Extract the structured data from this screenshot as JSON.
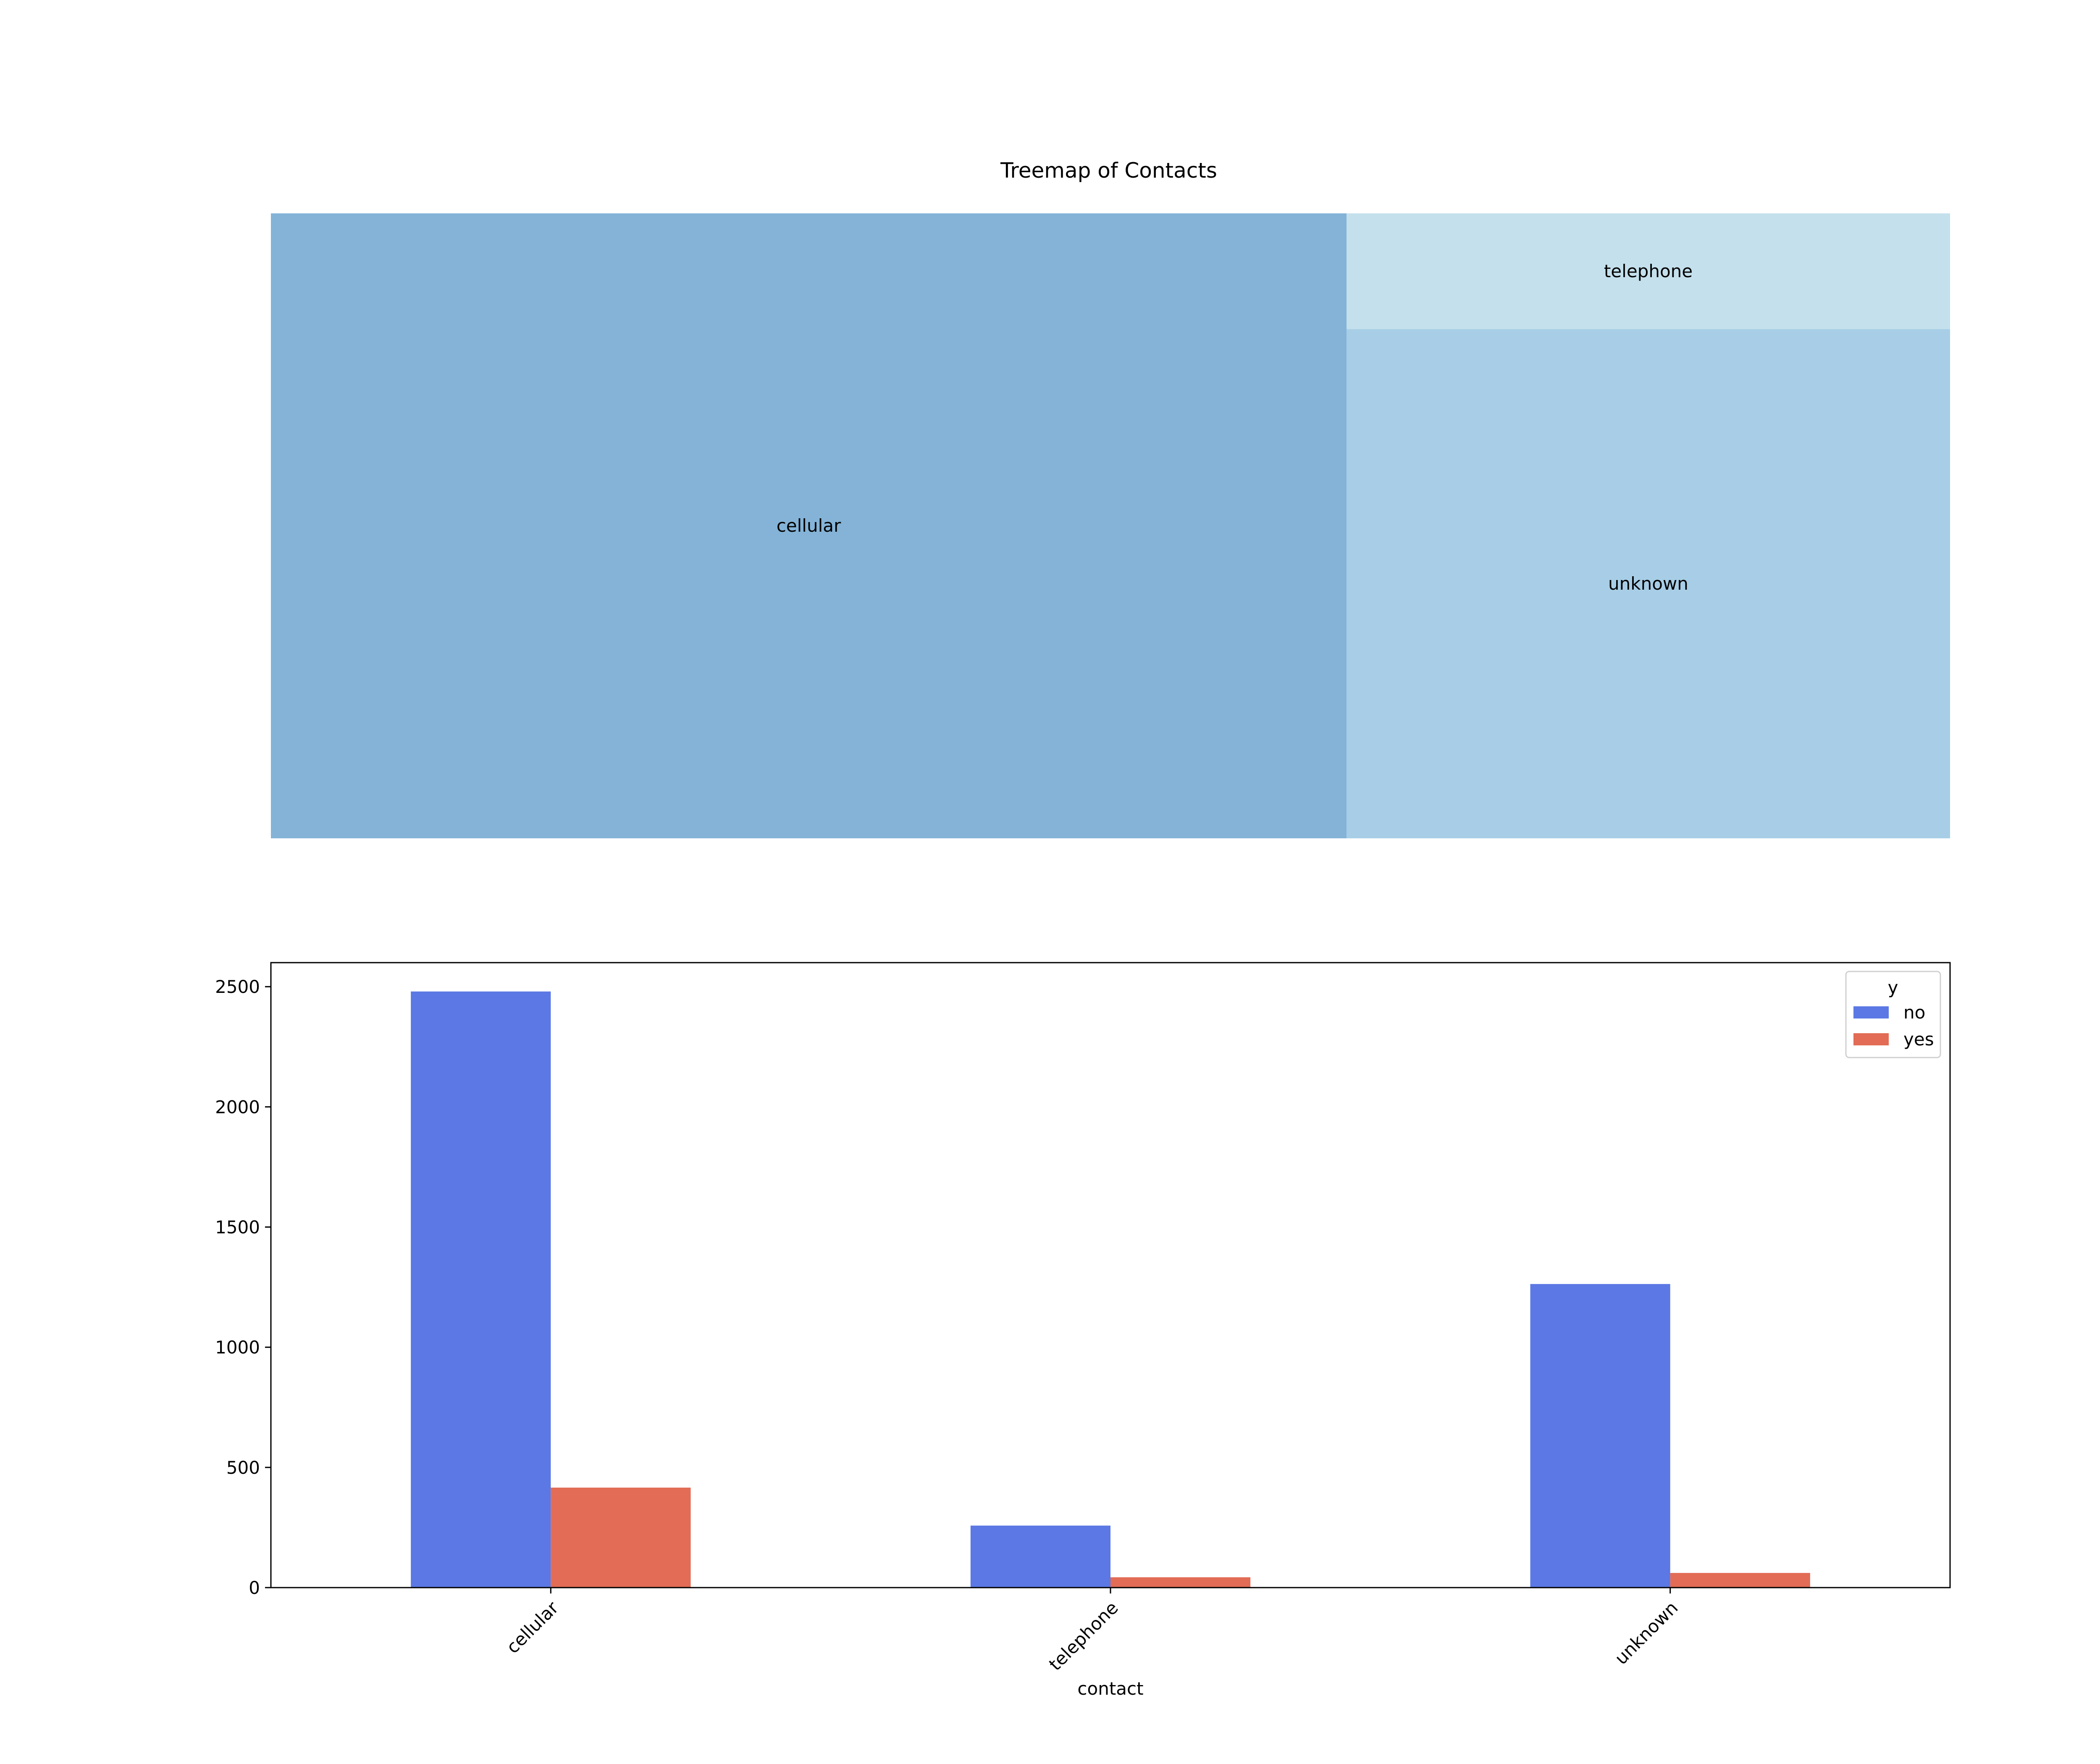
{
  "chart_data": [
    {
      "type": "treemap",
      "title": "Treemap of Contacts",
      "categories": [
        "cellular",
        "telephone",
        "unknown"
      ],
      "values": [
        2896,
        301,
        1324
      ],
      "colors": [
        "#84b3d7",
        "#c4e0ed",
        "#a7cee6"
      ]
    },
    {
      "type": "bar",
      "title": "",
      "xlabel": "contact",
      "ylabel": "",
      "categories": [
        "cellular",
        "telephone",
        "unknown"
      ],
      "series": [
        {
          "name": "no",
          "values": [
            2480,
            258,
            1263
          ],
          "color": "#5b78e4"
        },
        {
          "name": "yes",
          "values": [
            416,
            43,
            61
          ],
          "color": "#e26c55"
        }
      ],
      "yticks": [
        0,
        500,
        1000,
        1500,
        2000,
        2500
      ],
      "ylim": [
        0,
        2600
      ],
      "grid": false,
      "legend": {
        "title": "y",
        "position": "top-right"
      }
    }
  ]
}
